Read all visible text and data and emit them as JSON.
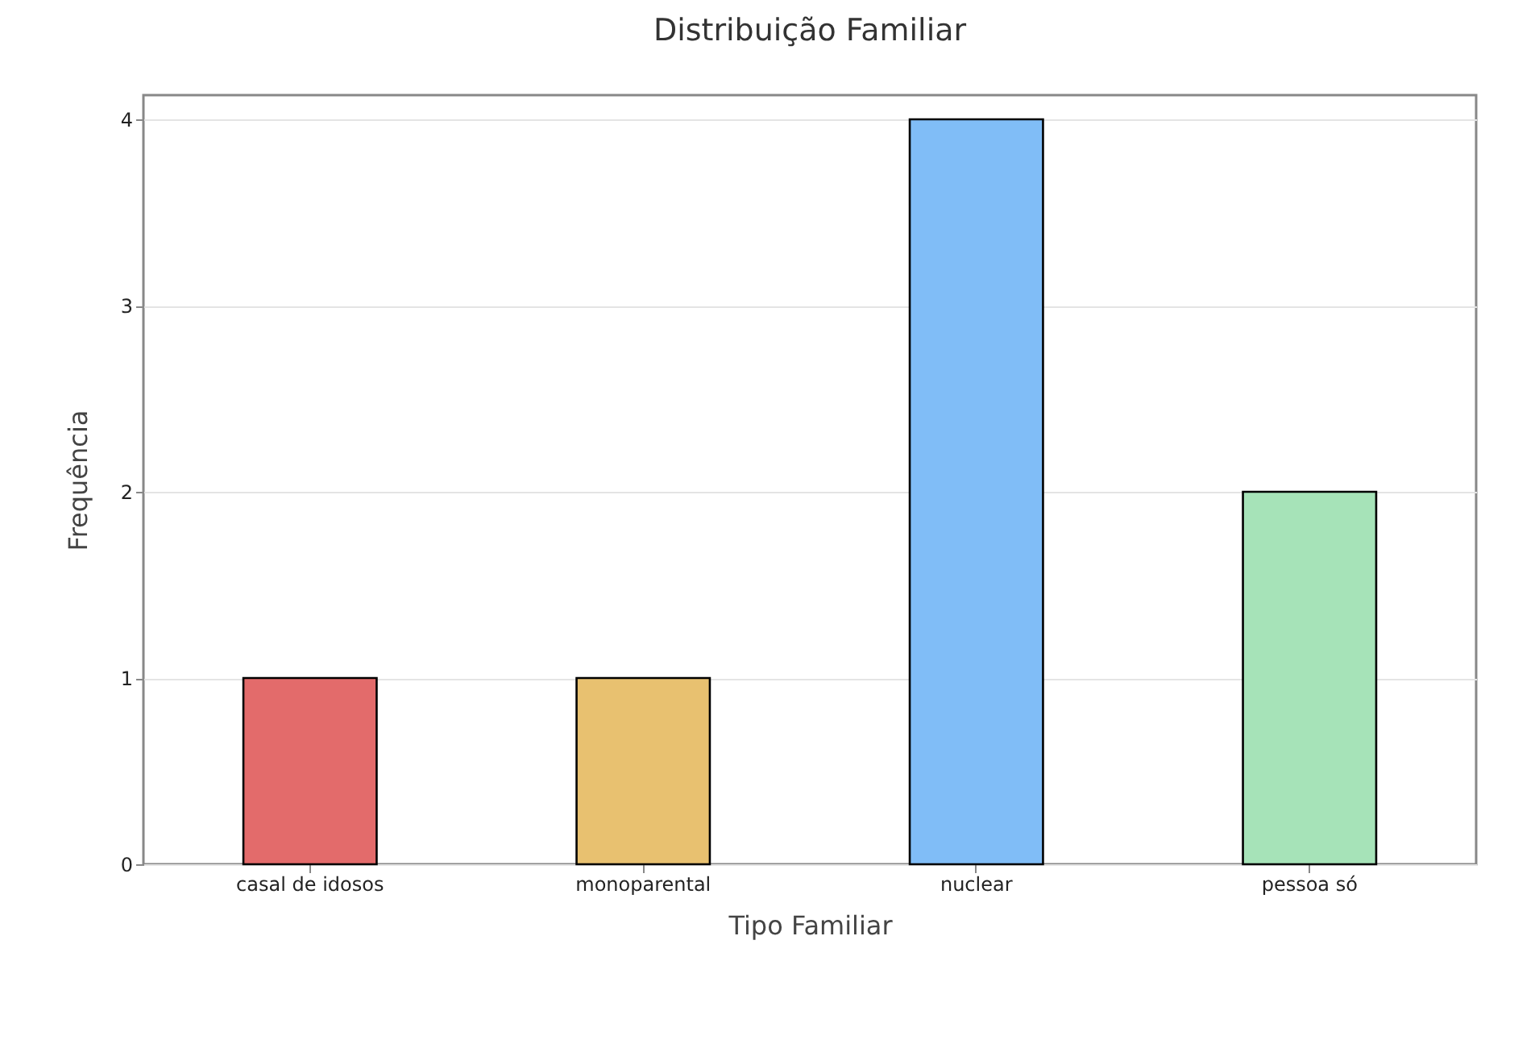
{
  "chart_data": {
    "type": "bar",
    "title": "Distribuição Familiar",
    "xlabel": "Tipo Familiar",
    "ylabel": "Frequência",
    "categories": [
      "casal de idosos",
      "monoparental",
      "nuclear",
      "pessoa só"
    ],
    "values": [
      1,
      1,
      4,
      2
    ],
    "colors": [
      "#e36b6b",
      "#e8c170",
      "#80bdf7",
      "#a6e3b8"
    ],
    "ylim": [
      0,
      4.13
    ],
    "yticks": [
      0,
      1,
      2,
      3,
      4
    ],
    "grid": "y"
  }
}
